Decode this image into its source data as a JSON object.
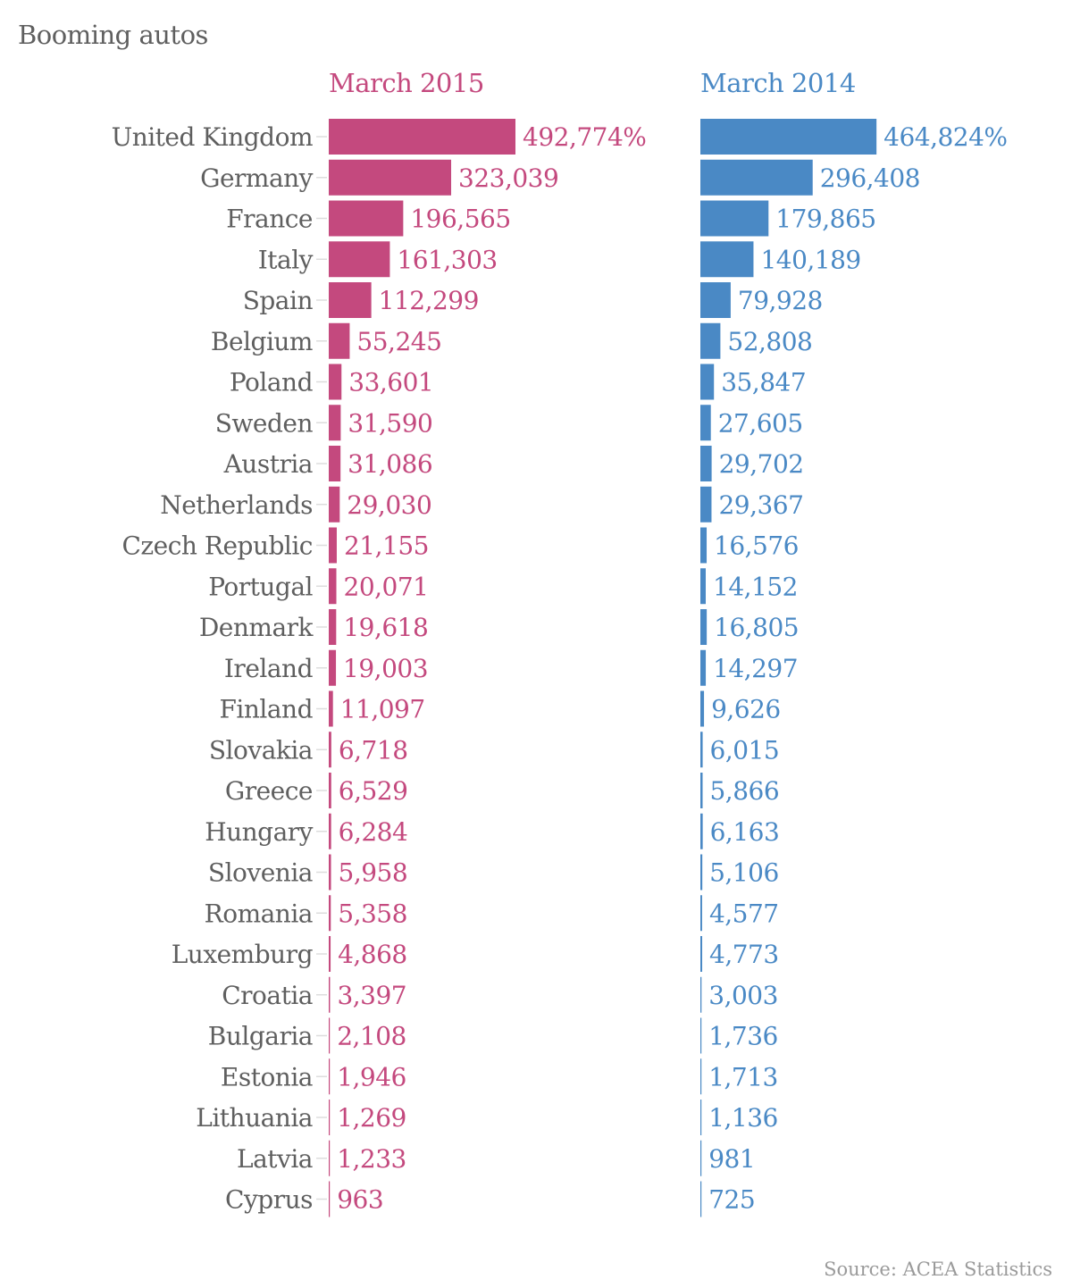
{
  "chart_data": {
    "type": "bar",
    "orientation": "horizontal",
    "title": "Booming autos",
    "source": "Source: ACEA Statistics",
    "categories": [
      "United Kingdom",
      "Germany",
      "France",
      "Italy",
      "Spain",
      "Belgium",
      "Poland",
      "Sweden",
      "Austria",
      "Netherlands",
      "Czech Republic",
      "Portugal",
      "Denmark",
      "Ireland",
      "Finland",
      "Slovakia",
      "Greece",
      "Hungary",
      "Slovenia",
      "Romania",
      "Luxemburg",
      "Croatia",
      "Bulgaria",
      "Estonia",
      "Lithuania",
      "Latvia",
      "Cyprus"
    ],
    "series": [
      {
        "name": "March 2015",
        "color": "#c4497e",
        "values": [
          492774,
          323039,
          196565,
          161303,
          112299,
          55245,
          33601,
          31590,
          31086,
          29030,
          21155,
          20071,
          19618,
          19003,
          11097,
          6718,
          6529,
          6284,
          5958,
          5358,
          4868,
          3397,
          2108,
          1946,
          1269,
          1233,
          963
        ],
        "labels": [
          "492,774%",
          "323,039",
          "196,565",
          "161,303",
          "112,299",
          "55,245",
          "33,601",
          "31,590",
          "31,086",
          "29,030",
          "21,155",
          "20,071",
          "19,618",
          "19,003",
          "11,097",
          "6,718",
          "6,529",
          "6,284",
          "5,958",
          "5,358",
          "4,868",
          "3,397",
          "2,108",
          "1,946",
          "1,269",
          "1,233",
          "963"
        ]
      },
      {
        "name": "March 2014",
        "color": "#4a89c5",
        "values": [
          464824,
          296408,
          179865,
          140189,
          79928,
          52808,
          35847,
          27605,
          29702,
          29367,
          16576,
          14152,
          16805,
          14297,
          9626,
          6015,
          5866,
          6163,
          5106,
          4577,
          4773,
          3003,
          1736,
          1713,
          1136,
          981,
          725
        ],
        "labels": [
          "464,824%",
          "296,408",
          "179,865",
          "140,189",
          "79,928",
          "52,808",
          "35,847",
          "27,605",
          "29,702",
          "29,367",
          "16,576",
          "14,152",
          "16,805",
          "14,297",
          "9,626",
          "6,015",
          "5,866",
          "6,163",
          "5,106",
          "4,577",
          "4,773",
          "3,003",
          "1,736",
          "1,713",
          "1,136",
          "981",
          "725"
        ]
      }
    ],
    "xlim": [
      0,
      492774
    ],
    "grid": false,
    "legend": "column-headers"
  }
}
